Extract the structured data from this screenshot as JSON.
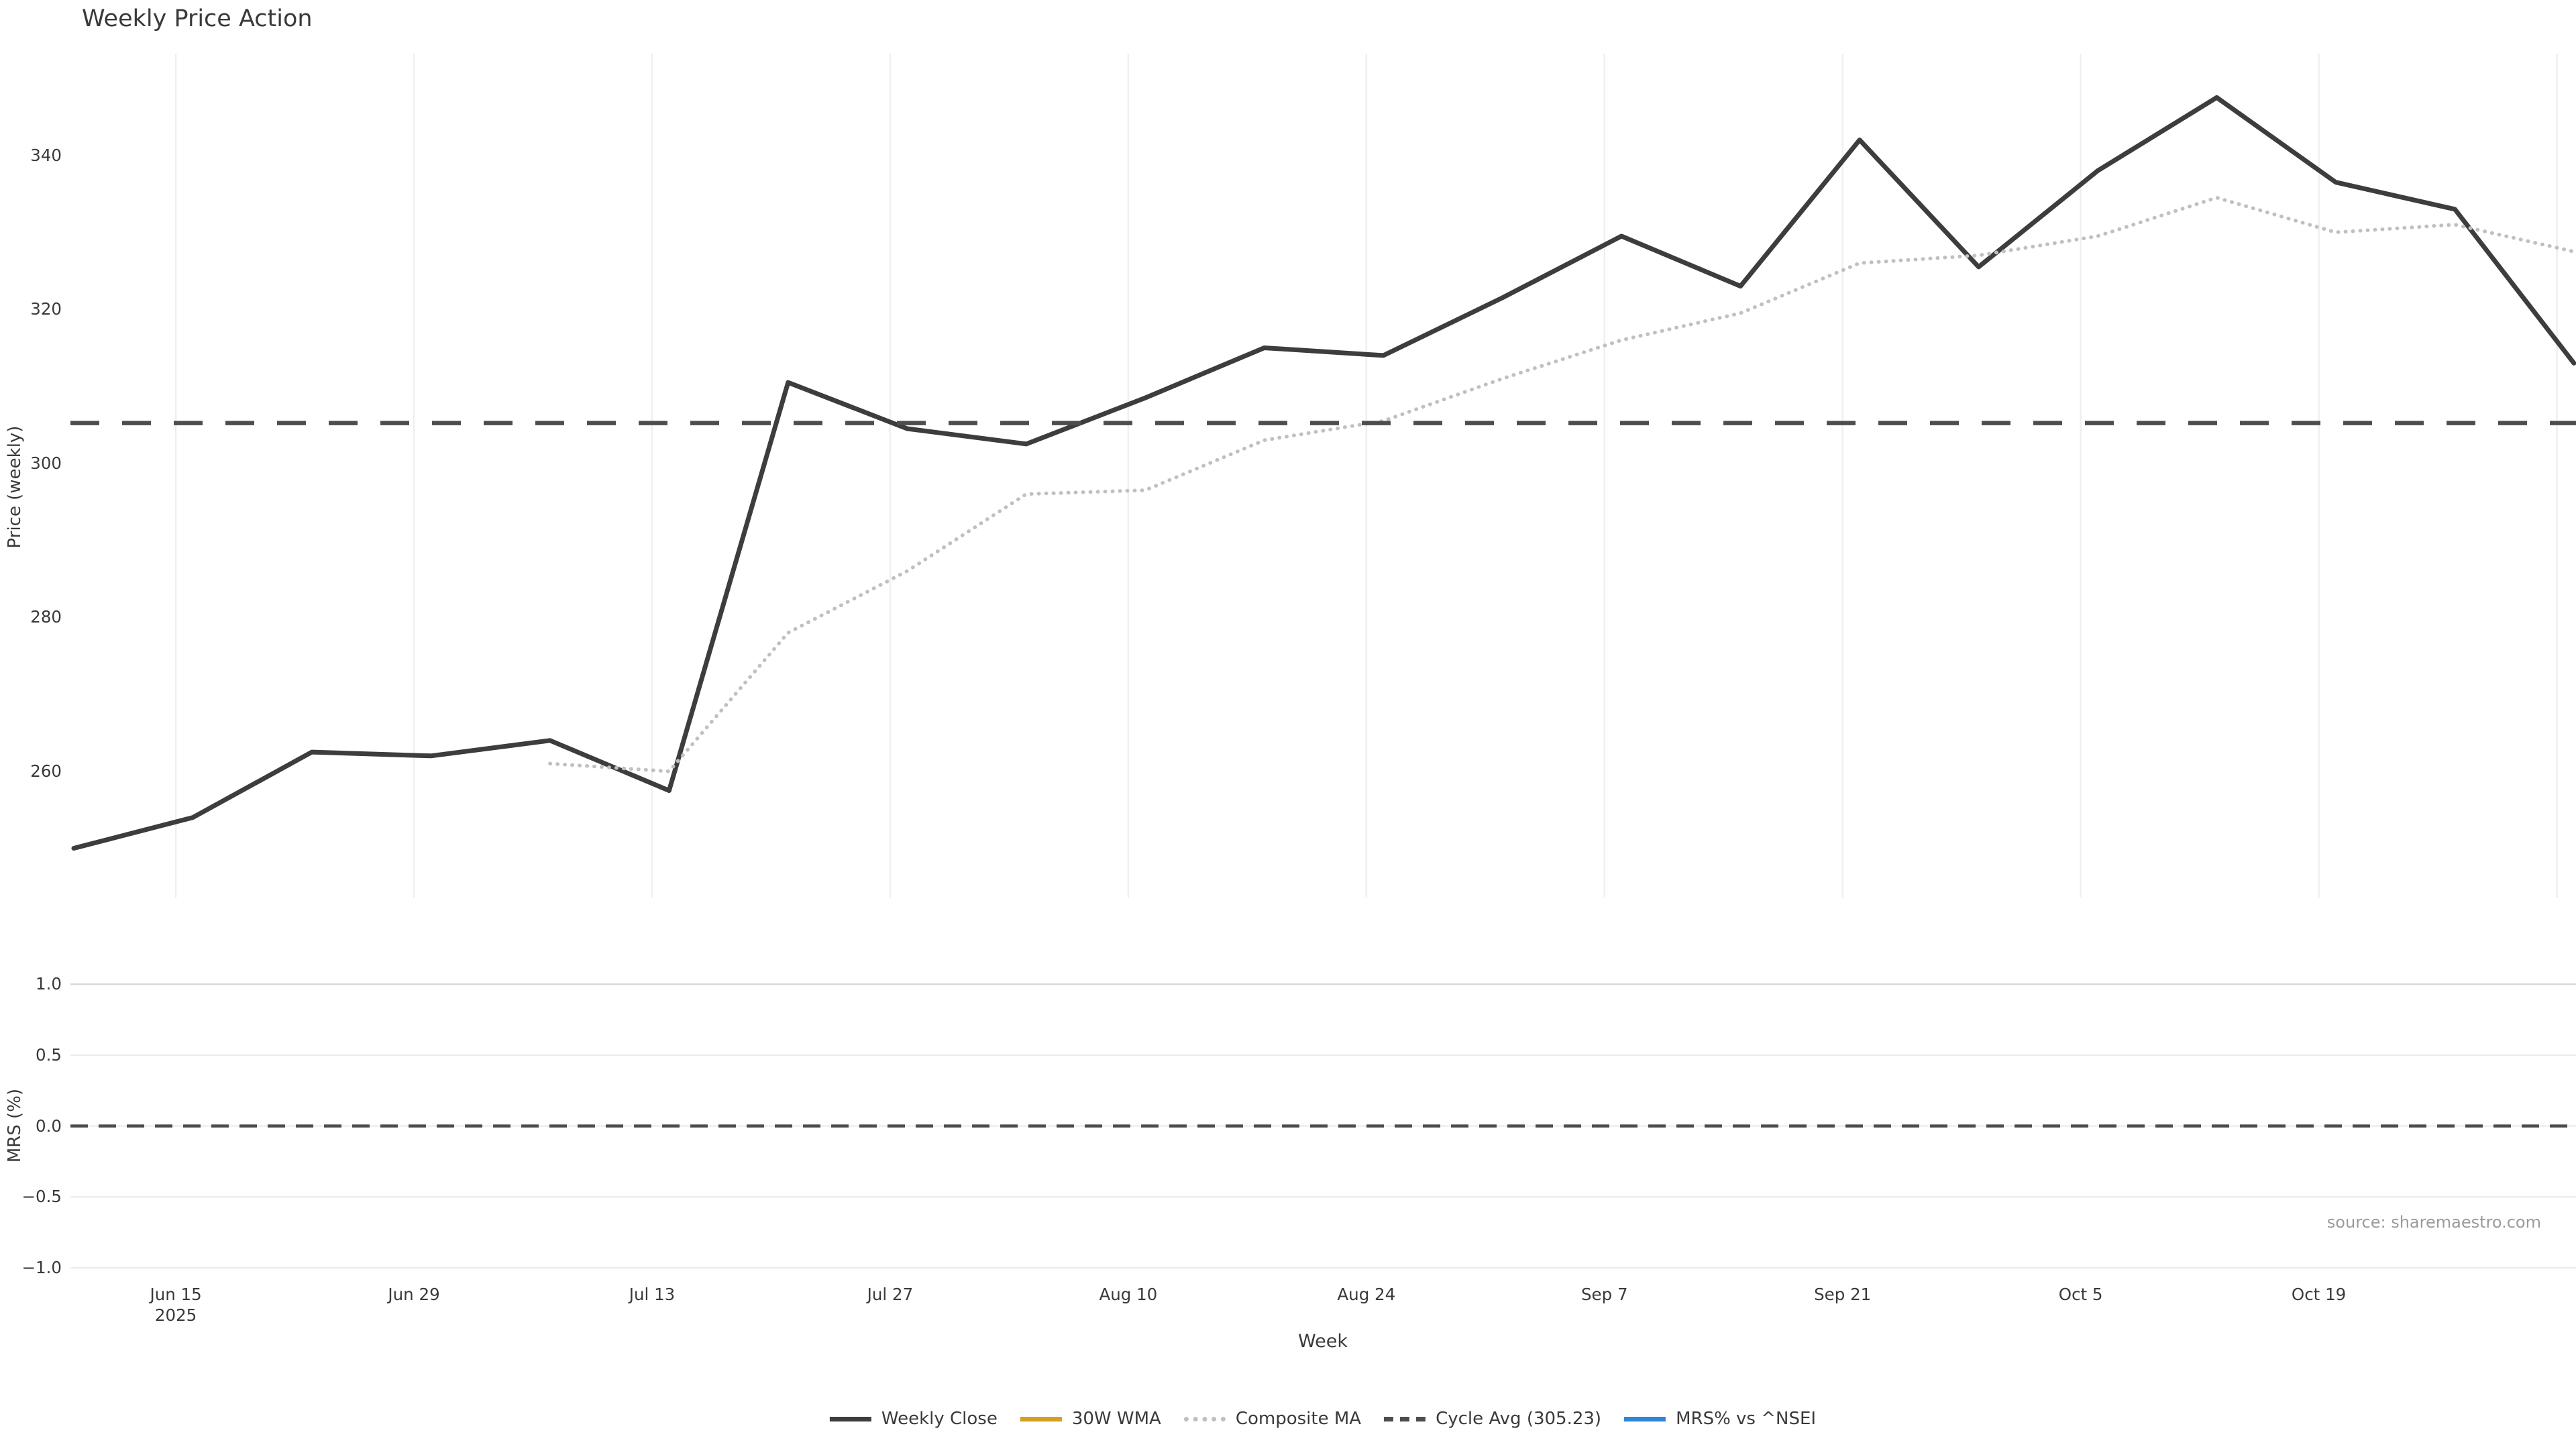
{
  "title": "Weekly Price Action",
  "xlabel": "Week",
  "source": "source: sharemaestro.com",
  "colors": {
    "weekly_close": "#3d3d3d",
    "wma_30w": "#d5a021",
    "composite_ma": "#c0c0c0",
    "cycle_avg": "#4d4d4d",
    "mrs_line": "#2d86d8",
    "price_grid": "#edf0f2",
    "mrs_grid": "#ededed",
    "mrs_grid_top": "#d9d9d9",
    "text": "#3a3a3a",
    "source_text": "#9b9b9b"
  },
  "price_panel": {
    "ylabel": "Price (weekly)",
    "ytick_labels": [
      "340",
      "320",
      "300",
      "280",
      "260"
    ],
    "ytick_values": [
      340,
      320,
      300,
      280,
      260
    ],
    "cycle_avg_value": 305.23
  },
  "mrs_panel": {
    "ylabel": "MRS (%)",
    "ytick_labels": [
      "1.0",
      "0.5",
      "0.0",
      "−0.5",
      "−1.0"
    ],
    "ytick_values": [
      1.0,
      0.5,
      0.0,
      -0.5,
      -1.0
    ],
    "zero_line_value": 0.0
  },
  "x_axis": {
    "tick_labels": [
      "Jun 15",
      "Jun 29",
      "Jul 13",
      "Jul 27",
      "Aug 10",
      "Aug 24",
      "Sep 7",
      "Sep 21",
      "Oct 5",
      "Oct 19"
    ],
    "first_tick_sublabel": "2025"
  },
  "legend": {
    "items": [
      {
        "label": "Weekly Close",
        "color": "#3d3d3d",
        "style": "solid"
      },
      {
        "label": "30W WMA",
        "color": "#d5a021",
        "style": "solid"
      },
      {
        "label": "Composite MA",
        "color": "#c0c0c0",
        "style": "dotted"
      },
      {
        "label": "Cycle Avg (305.23)",
        "color": "#4d4d4d",
        "style": "dashed"
      },
      {
        "label": "MRS% vs ^NSEI",
        "color": "#2d86d8",
        "style": "solid"
      }
    ]
  },
  "chart_data": [
    {
      "type": "line",
      "title": "Weekly Price Action",
      "xlabel": "Week",
      "ylabel": "Price (weekly)",
      "x": [
        "Jun 9",
        "Jun 16",
        "Jun 23",
        "Jun 30",
        "Jul 7",
        "Jul 14",
        "Jul 21",
        "Jul 28",
        "Aug 4",
        "Aug 11",
        "Aug 18",
        "Aug 25",
        "Sep 1",
        "Sep 8",
        "Sep 15",
        "Sep 22",
        "Sep 29",
        "Oct 6",
        "Oct 13",
        "Oct 20",
        "Oct 27",
        "Nov 3"
      ],
      "year": "2025",
      "ylim": [
        243.6,
        353.2
      ],
      "yticks": [
        260,
        280,
        300,
        320,
        340
      ],
      "grid": "vertical-only",
      "legend_position": "lower center outside",
      "series": [
        {
          "name": "Weekly Close",
          "style": "solid",
          "color": "#3d3d3d",
          "visible": true,
          "values": [
            250,
            254,
            262.5,
            262,
            264,
            257.5,
            310.5,
            304.5,
            302.5,
            308.5,
            315,
            314,
            321.5,
            329.5,
            323,
            342,
            325.5,
            338,
            347.5,
            336.5,
            333,
            313
          ]
        },
        {
          "name": "30W WMA",
          "style": "solid",
          "color": "#d5a021",
          "visible": false,
          "values": []
        },
        {
          "name": "Composite MA",
          "style": "dotted",
          "color": "#c0c0c0",
          "visible": true,
          "values": [
            null,
            null,
            null,
            null,
            261,
            260,
            278,
            286,
            296,
            296.5,
            303,
            305.5,
            311,
            316,
            319.5,
            326,
            327,
            329.5,
            334.5,
            330,
            331,
            327.5
          ]
        },
        {
          "name": "Cycle Avg (305.23)",
          "style": "dashed",
          "color": "#4d4d4d",
          "visible": true,
          "constant": 305.23
        }
      ]
    },
    {
      "type": "line",
      "xlabel": "Week",
      "ylabel": "MRS (%)",
      "ylim": [
        -1.1,
        1.1
      ],
      "yticks": [
        1.0,
        0.5,
        0.0,
        -0.5,
        -1.0
      ],
      "grid": "horizontal-only",
      "series": [
        {
          "name": "MRS% vs ^NSEI",
          "style": "solid",
          "color": "#2d86d8",
          "visible": false,
          "values": []
        },
        {
          "name": "Zero line",
          "style": "dashed",
          "color": "#4d4d4d",
          "visible": true,
          "constant": 0.0
        }
      ]
    }
  ]
}
